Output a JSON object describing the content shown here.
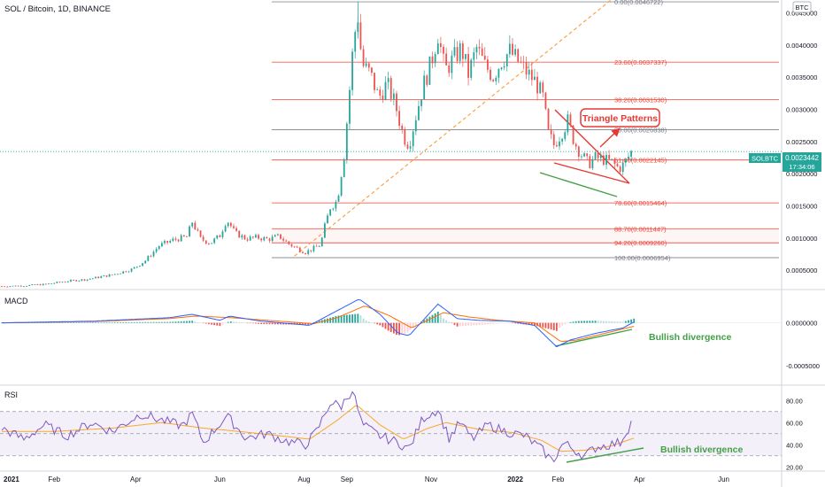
{
  "header": {
    "symbol_title": "SOL / Bitcoin, 1D, BINANCE",
    "currency_badge": "BTC"
  },
  "price_badge": {
    "ticker": "SOLBTC",
    "price": "0.0023442",
    "countdown": "17:34:06"
  },
  "annotations": {
    "triangle_label": "Triangle Patterns",
    "macd_divergence": "Bullish divergence",
    "rsi_divergence": "Bullish divergence"
  },
  "colors": {
    "up": "#26a69a",
    "down": "#ef5350",
    "fib": "#f44336",
    "fib_gray": "#787b86",
    "trend_orange": "#f89d3a",
    "macd_line": "#2962ff",
    "signal_line": "#ff6d00",
    "rsi_line": "#7e57c2",
    "rsi_ma": "#f9a825",
    "divergence_green": "#43a047",
    "annotation_red": "#e53935",
    "last_price_line": "#26a69a"
  },
  "chart_data": [
    {
      "panel": "price",
      "type": "candlestick",
      "x_ticks": [
        "2021",
        "Feb",
        "Apr",
        "Jun",
        "Aug",
        "Sep",
        "Nov",
        "2022",
        "Feb",
        "Apr",
        "Jun"
      ],
      "y_ticks": [
        "0.0045000",
        "0.0040000",
        "0.0035000",
        "0.0030000",
        "0.0025000",
        "0.0020000",
        "0.0015000",
        "0.0010000",
        "0.0005000"
      ],
      "ylim": [
        0.0002,
        0.0047
      ],
      "fib_levels": [
        {
          "label": "0.00(0.0046722)",
          "value": 0.0046722
        },
        {
          "label": "23.60(0.0037337)",
          "value": 0.0037337
        },
        {
          "label": "38.20(0.0031530)",
          "value": 0.003153
        },
        {
          "label": "50.00(0.0026838)",
          "value": 0.0026838
        },
        {
          "label": "61.80(0.0022145)",
          "value": 0.0022145
        },
        {
          "label": "78.60(0.0015464)",
          "value": 0.0015464
        },
        {
          "label": "88.70(0.0011447)",
          "value": 0.0011447
        },
        {
          "label": "94.20(0.0009260)",
          "value": 0.000926
        },
        {
          "label": "100.00(0.0006954)",
          "value": 0.0006954
        }
      ],
      "close_path": [
        [
          "2020-12-25",
          0.00025
        ],
        [
          "2021-01-10",
          0.00026
        ],
        [
          "2021-01-25",
          0.00028
        ],
        [
          "2021-02-10",
          0.00033
        ],
        [
          "2021-02-25",
          0.00036
        ],
        [
          "2021-03-15",
          0.00043
        ],
        [
          "2021-03-30",
          0.00052
        ],
        [
          "2021-04-08",
          0.00065
        ],
        [
          "2021-04-18",
          0.00088
        ],
        [
          "2021-04-28",
          0.00097
        ],
        [
          "2021-05-08",
          0.00102
        ],
        [
          "2021-05-12",
          0.00125
        ],
        [
          "2021-05-18",
          0.00099
        ],
        [
          "2021-05-25",
          0.00092
        ],
        [
          "2021-06-01",
          0.00104
        ],
        [
          "2021-06-06",
          0.00129
        ],
        [
          "2021-06-12",
          0.00108
        ],
        [
          "2021-06-20",
          0.00099
        ],
        [
          "2021-06-28",
          0.00101
        ],
        [
          "2021-07-06",
          0.00098
        ],
        [
          "2021-07-14",
          0.00103
        ],
        [
          "2021-07-20",
          0.00092
        ],
        [
          "2021-07-26",
          0.00085
        ],
        [
          "2021-08-02",
          0.00078
        ],
        [
          "2021-08-08",
          0.00084
        ],
        [
          "2021-08-13",
          0.0009
        ],
        [
          "2021-08-16",
          0.00118
        ],
        [
          "2021-08-20",
          0.00148
        ],
        [
          "2021-08-25",
          0.00158
        ],
        [
          "2021-08-30",
          0.0023
        ],
        [
          "2021-09-02",
          0.00305
        ],
        [
          "2021-09-06",
          0.0041
        ],
        [
          "2021-09-09",
          0.00445
        ],
        [
          "2021-09-12",
          0.0037
        ],
        [
          "2021-09-18",
          0.00355
        ],
        [
          "2021-09-24",
          0.00318
        ],
        [
          "2021-09-30",
          0.0034
        ],
        [
          "2021-10-06",
          0.00308
        ],
        [
          "2021-10-12",
          0.00258
        ],
        [
          "2021-10-16",
          0.00245
        ],
        [
          "2021-10-21",
          0.0029
        ],
        [
          "2021-10-26",
          0.00335
        ],
        [
          "2021-11-01",
          0.00372
        ],
        [
          "2021-11-06",
          0.00418
        ],
        [
          "2021-11-11",
          0.0036
        ],
        [
          "2021-11-17",
          0.00378
        ],
        [
          "2021-11-23",
          0.00395
        ],
        [
          "2021-11-28",
          0.00355
        ],
        [
          "2021-12-04",
          0.00395
        ],
        [
          "2021-12-10",
          0.00368
        ],
        [
          "2021-12-16",
          0.00352
        ],
        [
          "2021-12-22",
          0.00376
        ],
        [
          "2021-12-28",
          0.0039
        ],
        [
          "2022-01-04",
          0.00372
        ],
        [
          "2022-01-10",
          0.00356
        ],
        [
          "2022-01-16",
          0.00342
        ],
        [
          "2022-01-21",
          0.00318
        ],
        [
          "2022-01-25",
          0.00262
        ],
        [
          "2022-01-29",
          0.00245
        ],
        [
          "2022-02-03",
          0.00262
        ],
        [
          "2022-02-08",
          0.00282
        ],
        [
          "2022-02-13",
          0.00248
        ],
        [
          "2022-02-18",
          0.0023
        ],
        [
          "2022-02-23",
          0.00215
        ],
        [
          "2022-02-28",
          0.00225
        ],
        [
          "2022-03-06",
          0.00222
        ],
        [
          "2022-03-12",
          0.00218
        ],
        [
          "2022-03-17",
          0.00208
        ],
        [
          "2022-03-21",
          0.00215
        ],
        [
          "2022-03-26",
          0.00234
        ]
      ]
    },
    {
      "panel": "macd",
      "type": "line+histogram",
      "title": "MACD",
      "y_ticks": [
        "0.0000000",
        "-0.0005000"
      ],
      "ylim": [
        -0.00072,
        0.00038
      ],
      "macd_path": [
        [
          "2020-12-25",
          0.0
        ],
        [
          "2021-03-01",
          2e-05
        ],
        [
          "2021-04-25",
          6e-05
        ],
        [
          "2021-05-12",
          0.0001
        ],
        [
          "2021-06-01",
          3e-05
        ],
        [
          "2021-06-08",
          8e-05
        ],
        [
          "2021-07-01",
          2e-05
        ],
        [
          "2021-08-05",
          -3e-05
        ],
        [
          "2021-08-20",
          0.0001
        ],
        [
          "2021-09-10",
          0.00028
        ],
        [
          "2021-09-25",
          0.0001
        ],
        [
          "2021-10-08",
          -0.00012
        ],
        [
          "2021-10-16",
          -0.00015
        ],
        [
          "2021-11-06",
          0.00022
        ],
        [
          "2021-11-20",
          5e-05
        ],
        [
          "2021-12-05",
          3e-05
        ],
        [
          "2021-12-28",
          2e-05
        ],
        [
          "2022-01-15",
          -3e-05
        ],
        [
          "2022-01-31",
          -0.00028
        ],
        [
          "2022-02-10",
          -0.0002
        ],
        [
          "2022-03-01",
          -0.00012
        ],
        [
          "2022-03-20",
          -6e-05
        ],
        [
          "2022-03-28",
          1e-05
        ]
      ],
      "signal_path": [
        [
          "2020-12-25",
          0.0
        ],
        [
          "2021-03-01",
          1.5e-05
        ],
        [
          "2021-04-25",
          5e-05
        ],
        [
          "2021-05-15",
          8e-05
        ],
        [
          "2021-06-10",
          6e-05
        ],
        [
          "2021-07-05",
          3e-05
        ],
        [
          "2021-08-08",
          -1e-05
        ],
        [
          "2021-08-25",
          6e-05
        ],
        [
          "2021-09-14",
          0.0002
        ],
        [
          "2021-10-01",
          9e-05
        ],
        [
          "2021-10-18",
          -6e-05
        ],
        [
          "2021-11-10",
          0.00012
        ],
        [
          "2021-11-28",
          7e-05
        ],
        [
          "2021-12-20",
          3e-05
        ],
        [
          "2022-01-15",
          0.0
        ],
        [
          "2022-02-03",
          -0.00022
        ],
        [
          "2022-02-15",
          -0.0002
        ],
        [
          "2022-03-05",
          -0.00013
        ],
        [
          "2022-03-28",
          -4e-05
        ]
      ]
    },
    {
      "panel": "rsi",
      "type": "line",
      "title": "RSI",
      "y_ticks": [
        "80.00",
        "60.00",
        "40.00",
        "20.00"
      ],
      "ylim": [
        17,
        93
      ],
      "band": [
        30,
        70
      ],
      "midline": 50,
      "rsi_path": [
        [
          "2020-12-25",
          55
        ],
        [
          "2021-01-10",
          45
        ],
        [
          "2021-01-25",
          58
        ],
        [
          "2021-02-10",
          48
        ],
        [
          "2021-02-28",
          60
        ],
        [
          "2021-03-15",
          52
        ],
        [
          "2021-04-05",
          68
        ],
        [
          "2021-04-20",
          62
        ],
        [
          "2021-05-05",
          57
        ],
        [
          "2021-05-12",
          68
        ],
        [
          "2021-05-20",
          42
        ],
        [
          "2021-06-06",
          66
        ],
        [
          "2021-06-20",
          46
        ],
        [
          "2021-07-05",
          50
        ],
        [
          "2021-07-20",
          43
        ],
        [
          "2021-08-02",
          40
        ],
        [
          "2021-08-10",
          52
        ],
        [
          "2021-08-20",
          78
        ],
        [
          "2021-08-28",
          75
        ],
        [
          "2021-09-05",
          90
        ],
        [
          "2021-09-12",
          58
        ],
        [
          "2021-09-25",
          48
        ],
        [
          "2021-10-08",
          42
        ],
        [
          "2021-10-16",
          36
        ],
        [
          "2021-10-26",
          64
        ],
        [
          "2021-11-06",
          72
        ],
        [
          "2021-11-14",
          46
        ],
        [
          "2021-11-22",
          60
        ],
        [
          "2021-12-01",
          45
        ],
        [
          "2021-12-12",
          58
        ],
        [
          "2021-12-25",
          52
        ],
        [
          "2022-01-08",
          48
        ],
        [
          "2022-01-20",
          36
        ],
        [
          "2022-01-28",
          25
        ],
        [
          "2022-02-05",
          42
        ],
        [
          "2022-02-12",
          36
        ],
        [
          "2022-02-20",
          30
        ],
        [
          "2022-03-01",
          38
        ],
        [
          "2022-03-10",
          40
        ],
        [
          "2022-03-18",
          42
        ],
        [
          "2022-03-26",
          60
        ]
      ],
      "rsi_ma_path": [
        [
          "2020-12-25",
          52
        ],
        [
          "2021-02-01",
          52
        ],
        [
          "2021-03-15",
          55
        ],
        [
          "2021-04-20",
          60
        ],
        [
          "2021-05-20",
          55
        ],
        [
          "2021-06-15",
          52
        ],
        [
          "2021-07-15",
          48
        ],
        [
          "2021-08-05",
          45
        ],
        [
          "2021-08-25",
          62
        ],
        [
          "2021-09-08",
          76
        ],
        [
          "2021-09-25",
          58
        ],
        [
          "2021-10-12",
          45
        ],
        [
          "2021-10-30",
          55
        ],
        [
          "2021-11-12",
          60
        ],
        [
          "2021-12-05",
          54
        ],
        [
          "2021-12-30",
          51
        ],
        [
          "2022-01-20",
          44
        ],
        [
          "2022-02-03",
          34
        ],
        [
          "2022-02-20",
          35
        ],
        [
          "2022-03-12",
          39
        ],
        [
          "2022-03-28",
          46
        ]
      ]
    }
  ]
}
